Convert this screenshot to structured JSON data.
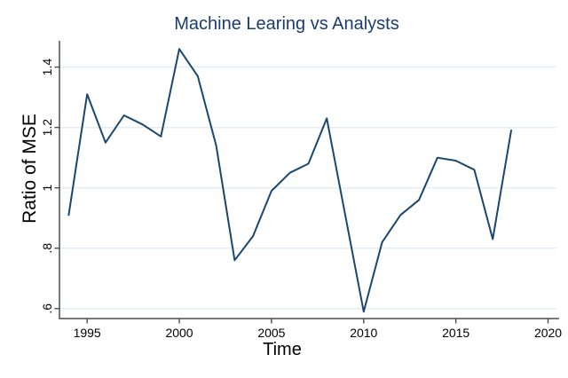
{
  "window": {
    "background": "#ffffff"
  },
  "chart_data": {
    "type": "line",
    "title": "Machine Learing vs Analysts",
    "xlabel": "Time",
    "ylabel": "Ratio of MSE",
    "x": [
      1994,
      1995,
      1996,
      1997,
      1998,
      1999,
      2000,
      2001,
      2002,
      2003,
      2004,
      2005,
      2006,
      2007,
      2008,
      2009,
      2010,
      2011,
      2012,
      2013,
      2014,
      2015,
      2016,
      2017,
      2018
    ],
    "values": [
      0.91,
      1.31,
      1.15,
      1.24,
      1.21,
      1.17,
      1.46,
      1.37,
      1.14,
      0.76,
      0.84,
      0.99,
      1.05,
      1.08,
      1.23,
      0.91,
      0.59,
      0.82,
      0.91,
      0.96,
      1.1,
      1.09,
      1.06,
      0.83,
      1.19
    ],
    "x_ticks": [
      1995,
      2000,
      2005,
      2010,
      2015,
      2020
    ],
    "y_ticks": [
      {
        "value": 0.6,
        "label": ".6"
      },
      {
        "value": 0.8,
        "label": ".8"
      },
      {
        "value": 1.0,
        "label": "1"
      },
      {
        "value": 1.2,
        "label": "1.2"
      },
      {
        "value": 1.4,
        "label": "1.4"
      }
    ],
    "xlim": [
      1993.5,
      2020.6
    ],
    "ylim": [
      0.567,
      1.487
    ],
    "grid": "horizontal",
    "legend": "none",
    "colors": {
      "line": "#1a476f",
      "title": "#1a3c6e",
      "grid": "#e4eef3",
      "axis": "#4d4d4d",
      "tick_label": "#000000"
    }
  }
}
